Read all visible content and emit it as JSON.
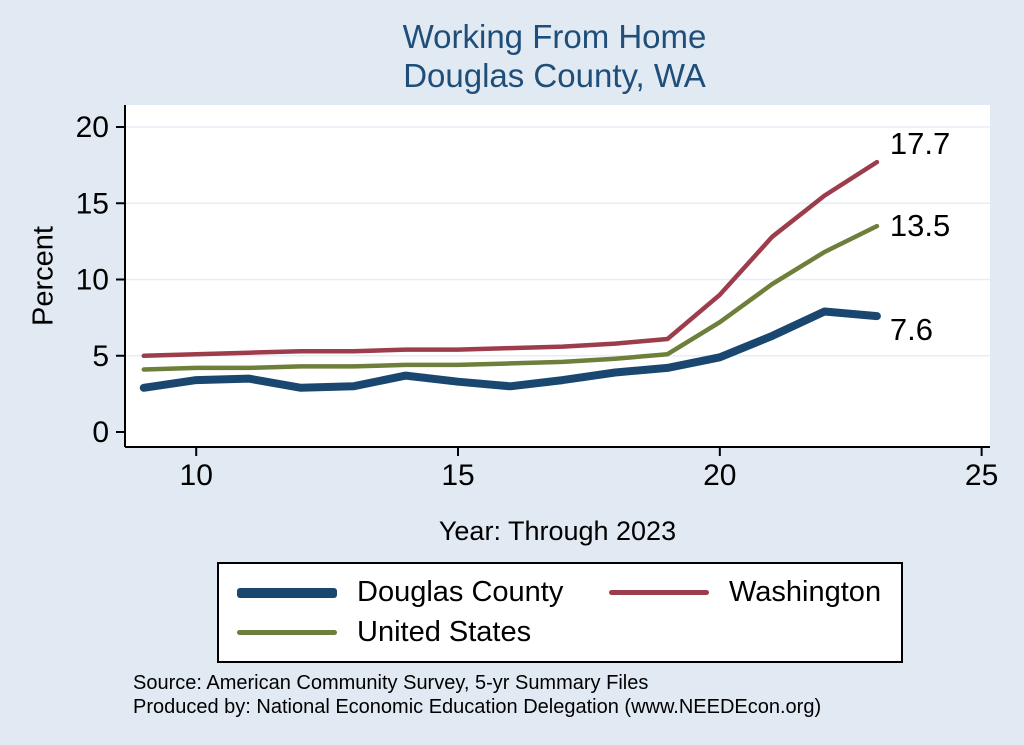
{
  "title": {
    "line1": "Working From Home",
    "line2": "Douglas County, WA"
  },
  "axes": {
    "y_label": "Percent",
    "x_label": "Year: Through 2023"
  },
  "chart_data": {
    "type": "line",
    "title": "Working From Home — Douglas County, WA",
    "xlabel": "Year: Through 2023",
    "ylabel": "Percent",
    "xlim": [
      8.64,
      25.16
    ],
    "ylim": [
      0,
      20
    ],
    "x_ticks": [
      10,
      15,
      20,
      25
    ],
    "y_ticks": [
      0,
      5,
      10,
      15,
      20
    ],
    "grid": true,
    "legend_position": "bottom",
    "x": [
      9,
      10,
      11,
      12,
      13,
      14,
      15,
      16,
      17,
      18,
      19,
      20,
      21,
      22,
      23
    ],
    "series": [
      {
        "name": "Douglas County",
        "color": "#1a476f",
        "width": 8,
        "values": [
          2.9,
          3.4,
          3.5,
          2.9,
          3.0,
          3.7,
          3.3,
          3.0,
          3.4,
          3.9,
          4.2,
          4.9,
          6.3,
          7.9,
          7.6
        ],
        "end_label": "7.6",
        "end_label_dy": 14
      },
      {
        "name": "Washington",
        "color": "#9d3d4c",
        "width": 4.5,
        "values": [
          5.0,
          5.1,
          5.2,
          5.3,
          5.3,
          5.4,
          5.4,
          5.5,
          5.6,
          5.8,
          6.1,
          9.0,
          12.8,
          15.5,
          17.7
        ],
        "end_label": "17.7",
        "end_label_dy": -18
      },
      {
        "name": "United States",
        "color": "#6d7f3a",
        "width": 4.5,
        "values": [
          4.1,
          4.2,
          4.2,
          4.3,
          4.3,
          4.4,
          4.4,
          4.5,
          4.6,
          4.8,
          5.1,
          7.2,
          9.7,
          11.8,
          13.5
        ],
        "end_label": "13.5",
        "end_label_dy": 0
      }
    ]
  },
  "footer": {
    "line1": "Source: American Community Survey, 5-yr Summary Files",
    "line2": "Produced by: National Economic Education Delegation (www.NEEDEcon.org)"
  },
  "colors": {
    "background": "#e1eaf3",
    "plot_bg": "#ffffff",
    "title": "#1f4e79",
    "grid": "#e6edf5",
    "axis": "#000000"
  }
}
